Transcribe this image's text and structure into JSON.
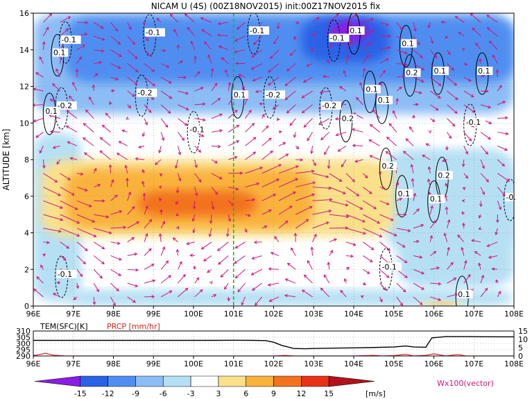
{
  "title": "NICAM U (4S) (00Z18NOV2015) init:00Z17NOV2015 fix",
  "colors": {
    "shading": [
      "#8b1ce3",
      "#2a62e6",
      "#4f8ef0",
      "#8cbdf5",
      "#b5e0f4",
      "#ffffff",
      "#fbe08a",
      "#f9b23c",
      "#f3721e",
      "#e83218",
      "#b3121a"
    ],
    "vector": "#d4147a",
    "marker_line": "#22b322",
    "temperature_line": "#000000",
    "precip_line": "#e0201a"
  },
  "chart_data": [
    {
      "type": "heatmap",
      "title": "NICAM U (4S) (00Z18NOV2015) init:00Z17NOV2015 fix",
      "ylabel": "ALTITUDE [km]",
      "xlim": [
        96,
        108
      ],
      "ylim": [
        0,
        16
      ],
      "grid": true,
      "x_ticks": [
        "96E",
        "97E",
        "98E",
        "99E",
        "100E",
        "101E",
        "102E",
        "103E",
        "104E",
        "105E",
        "106E",
        "107E",
        "108E"
      ],
      "y_ticks": [
        "0",
        "2",
        "4",
        "6",
        "8",
        "10",
        "12",
        "14",
        "16"
      ],
      "marker_longitude": 101,
      "shaded_regions": [
        {
          "level": 5,
          "lon": [
            96.0,
            108.0
          ],
          "alt": [
            0,
            16
          ]
        },
        {
          "level": 2.5,
          "lon": [
            96.0,
            108.0
          ],
          "alt": [
            10.5,
            16.0
          ]
        },
        {
          "level": 1.5,
          "lon": [
            96.8,
            108.0
          ],
          "alt": [
            12.2,
            15.8
          ]
        },
        {
          "level": 1,
          "lon": [
            102.7,
            104.9
          ],
          "alt": [
            13.3,
            15.8
          ]
        },
        {
          "level": 0.2,
          "lon": [
            103.4,
            104.4
          ],
          "alt": [
            14.4,
            15.6
          ]
        },
        {
          "level": 3.5,
          "lon": [
            96.0,
            97.2
          ],
          "alt": [
            0.2,
            9.5
          ]
        },
        {
          "level": 3.5,
          "lon": [
            96.8,
            108.0
          ],
          "alt": [
            0.0,
            0.9
          ]
        },
        {
          "level": 3.5,
          "lon": [
            105.1,
            108.0
          ],
          "alt": [
            1.0,
            7.8
          ]
        },
        {
          "level": 4,
          "lon": [
            104.8,
            108.0
          ],
          "alt": [
            3.0,
            8.6
          ]
        },
        {
          "level": 6,
          "lon": [
            96.2,
            105.0
          ],
          "alt": [
            3.8,
            8.0
          ]
        },
        {
          "level": 7,
          "lon": [
            96.8,
            103.0
          ],
          "alt": [
            4.2,
            7.5
          ]
        },
        {
          "level": 8,
          "lon": [
            98.6,
            101.6
          ],
          "alt": [
            4.9,
            6.3
          ]
        },
        {
          "level": 6,
          "lon": [
            105.6,
            106.8
          ],
          "alt": [
            0.0,
            0.3
          ]
        },
        {
          "level": 7,
          "lon": [
            105.9,
            106.5
          ],
          "alt": [
            0.0,
            0.2
          ]
        }
      ],
      "contours": [
        {
          "label": "-0.1",
          "lon": 96.7,
          "alt": 14.4
        },
        {
          "label": "0.1",
          "lon": 96.5,
          "alt": 13.7
        },
        {
          "label": "-0.2",
          "lon": 96.6,
          "alt": 10.8
        },
        {
          "label": "0.1",
          "lon": 96.3,
          "alt": 10.5
        },
        {
          "label": "-0.1",
          "lon": 96.6,
          "alt": 1.6
        },
        {
          "label": "-0.1",
          "lon": 98.8,
          "alt": 14.8
        },
        {
          "label": "-0.2",
          "lon": 98.6,
          "alt": 11.5
        },
        {
          "label": "-0.1",
          "lon": 99.9,
          "alt": 9.5
        },
        {
          "label": "-0.1",
          "lon": 101.4,
          "alt": 14.9
        },
        {
          "label": "0.1",
          "lon": 101.0,
          "alt": 11.4
        },
        {
          "label": "-0.2",
          "lon": 101.8,
          "alt": 11.4
        },
        {
          "label": "-0.1",
          "lon": 103.4,
          "alt": 14.5
        },
        {
          "label": "0.1",
          "lon": 103.9,
          "alt": 14.9
        },
        {
          "label": "-0.2",
          "lon": 103.2,
          "alt": 10.8
        },
        {
          "label": "0.2",
          "lon": 103.7,
          "alt": 10.1
        },
        {
          "label": "0.1",
          "lon": 104.3,
          "alt": 11.7
        },
        {
          "label": "0.1",
          "lon": 104.6,
          "alt": 11.1
        },
        {
          "label": "0.1",
          "lon": 105.2,
          "alt": 14.2
        },
        {
          "label": "0.2",
          "lon": 105.3,
          "alt": 12.6
        },
        {
          "label": "0.1",
          "lon": 106.0,
          "alt": 12.7
        },
        {
          "label": "0.1",
          "lon": 107.1,
          "alt": 12.7
        },
        {
          "label": "-0.1",
          "lon": 106.8,
          "alt": 9.9
        },
        {
          "label": "0.2",
          "lon": 104.7,
          "alt": 7.5
        },
        {
          "label": "0.2",
          "lon": 106.1,
          "alt": 7.0
        },
        {
          "label": "0.1",
          "lon": 105.1,
          "alt": 6.0
        },
        {
          "label": "0.1",
          "lon": 105.9,
          "alt": 5.7
        },
        {
          "label": "-0.",
          "lon": 107.8,
          "alt": 5.8
        },
        {
          "label": "-0.1",
          "lon": 104.7,
          "alt": 2.0
        },
        {
          "label": "0.1",
          "lon": 106.6,
          "alt": 0.5
        }
      ]
    },
    {
      "type": "line",
      "ylabel_left": "TEM(SFC)[K]",
      "ylabel_right": "PRCP [mm/hr]",
      "xlim": [
        96,
        108
      ],
      "y_left_ticks": [
        "290",
        "295",
        "300",
        "305",
        "310"
      ],
      "y_right_ticks": [
        "0",
        "5",
        "10",
        "15"
      ],
      "series": [
        {
          "name": "TEM(SFC)[K]",
          "axis": "left",
          "x": [
            96,
            96.5,
            97,
            97.5,
            98,
            98.5,
            99,
            99.5,
            100,
            100.5,
            101,
            101.5,
            101.8,
            102,
            102.2,
            102.5,
            102.8,
            103,
            103.5,
            104,
            104.5,
            105,
            105.3,
            105.5,
            105.8,
            105.95,
            106.3,
            106.8,
            107.3,
            108
          ],
          "y": [
            302.5,
            302.5,
            302.5,
            302.5,
            302.5,
            302.5,
            302.5,
            302.5,
            302.5,
            302.5,
            302.6,
            302.5,
            302.3,
            301,
            298.5,
            296,
            295.8,
            296,
            296.3,
            296.5,
            296.8,
            297.2,
            298,
            297.2,
            297,
            304.5,
            305.5,
            305.5,
            305.4,
            305.3
          ]
        },
        {
          "name": "PRCP [mm/hr]",
          "axis": "right",
          "x": [
            96,
            96.15,
            96.3,
            96.5,
            96.8,
            97,
            98,
            99,
            100,
            101,
            102,
            102.3,
            102.5,
            103,
            104,
            104.5,
            104.7,
            105,
            105.3,
            105.5,
            105.8,
            106.0,
            106.3,
            106.6,
            106.8,
            107,
            108
          ],
          "y": [
            0.3,
            0.8,
            1.6,
            0.5,
            0,
            0,
            0,
            0,
            0,
            0,
            0,
            0.3,
            0,
            0,
            0,
            0.4,
            0,
            0.2,
            1.0,
            0,
            0.4,
            1.3,
            0,
            0.9,
            0,
            0,
            0
          ]
        }
      ]
    },
    {
      "type": "colorbar",
      "ticks": [
        "-15",
        "-12",
        "-9",
        "-6",
        "-3",
        "3",
        "6",
        "9",
        "12",
        "15"
      ],
      "unit": "[m/s]",
      "vector_label": "Wx100(vector)"
    }
  ]
}
